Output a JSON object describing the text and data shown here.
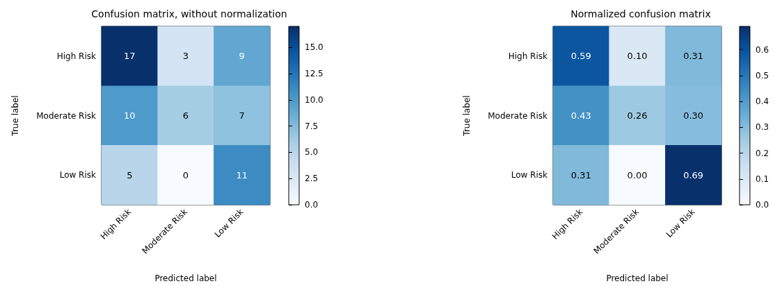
{
  "chart_data": [
    {
      "type": "heatmap",
      "title": "Confusion matrix, without normalization",
      "xlabel": "Predicted label",
      "ylabel": "True label",
      "categories": [
        "High Risk",
        "Moderate Risk",
        "Low Risk"
      ],
      "y_categories": [
        "High Risk",
        "Moderate Risk",
        "Low Risk"
      ],
      "cells": [
        [
          17,
          3,
          9
        ],
        [
          10,
          6,
          7
        ],
        [
          5,
          0,
          11
        ]
      ],
      "data_labels": true,
      "clim": [
        0,
        17
      ],
      "cticks": [
        {
          "value": 0,
          "label": "0.0"
        },
        {
          "value": 2.5,
          "label": "2.5"
        },
        {
          "value": 5,
          "label": "5.0"
        },
        {
          "value": 7.5,
          "label": "7.5"
        },
        {
          "value": 10,
          "label": "10.0"
        },
        {
          "value": 12.5,
          "label": "12.5"
        },
        {
          "value": 15,
          "label": "15.0"
        }
      ]
    },
    {
      "type": "heatmap",
      "title": "Normalized confusion matrix",
      "xlabel": "Predicted label",
      "ylabel": "True label",
      "categories": [
        "High Risk",
        "Moderate Risk",
        "Low Risk"
      ],
      "y_categories": [
        "High Risk",
        "Moderate Risk",
        "Low Risk"
      ],
      "cells": [
        [
          0.59,
          0.1,
          0.31
        ],
        [
          0.43,
          0.26,
          0.3
        ],
        [
          0.31,
          0,
          0.69
        ]
      ],
      "cell_labels": [
        [
          "0.59",
          "0.10",
          "0.31"
        ],
        [
          "0.43",
          "0.26",
          "0.30"
        ],
        [
          "0.31",
          "0.00",
          "0.69"
        ]
      ],
      "clim": [
        0,
        0.69
      ],
      "cticks": [
        {
          "value": 0,
          "label": "0.0"
        },
        0.1,
        0.2,
        0.3,
        0.4,
        0.5,
        0.6
      ]
    }
  ]
}
